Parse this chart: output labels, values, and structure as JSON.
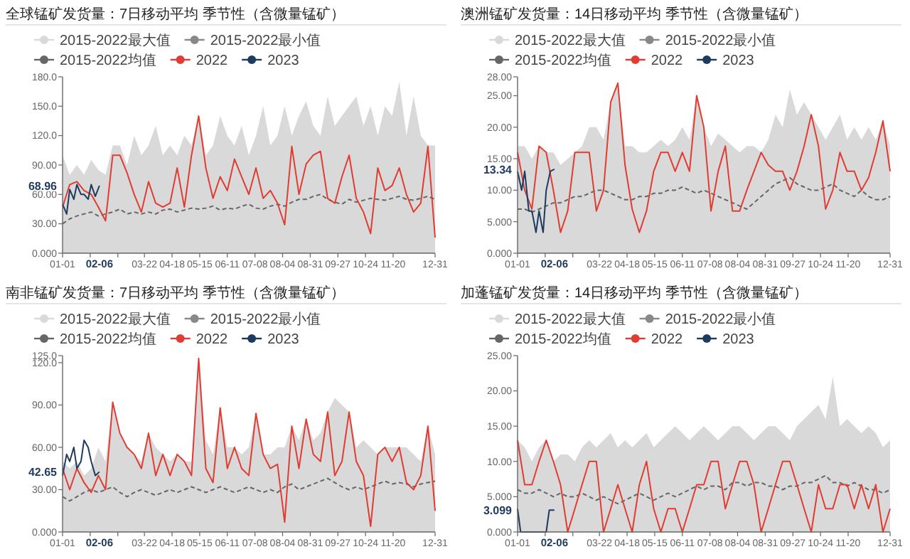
{
  "chart_data": [
    {
      "type": "line",
      "title": "全球锰矿发货量：7日移动平均 季节性（含微量锰矿）",
      "legend": "top",
      "x": [
        "--01-01",
        "--01-08",
        "--01-15",
        "--01-22",
        "--01-29",
        "--02-05",
        "--02-12",
        "--02-19",
        "--02-26",
        "--03-05",
        "--03-12",
        "--03-19",
        "--03-26",
        "--04-02",
        "--04-09",
        "--04-16",
        "--04-23",
        "--04-30",
        "--05-07",
        "--05-14",
        "--05-21",
        "--05-28",
        "--06-04",
        "--06-11",
        "--06-18",
        "--06-25",
        "--07-02",
        "--07-09",
        "--07-16",
        "--07-23",
        "--07-30",
        "--08-06",
        "--08-13",
        "--08-20",
        "--08-27",
        "--09-03",
        "--09-10",
        "--09-17",
        "--09-24",
        "--10-01",
        "--10-08",
        "--10-15",
        "--10-22",
        "--10-29",
        "--11-05",
        "--11-12",
        "--11-19",
        "--11-26",
        "--12-03",
        "--12-10",
        "--12-17",
        "--12-24",
        "--12-31"
      ],
      "xlim": [
        "--01-01",
        "--12-31"
      ],
      "xticks": [
        {
          "value": "--01-01",
          "label": "01-01"
        },
        {
          "value": "--01-28",
          "label": null
        },
        {
          "value": "--02-24",
          "label": null
        },
        {
          "value": "--03-22",
          "label": "03-22"
        },
        {
          "value": "--04-18",
          "label": "04-18"
        },
        {
          "value": "--05-15",
          "label": "05-15"
        },
        {
          "value": "--06-11",
          "label": "06-11"
        },
        {
          "value": "--07-08",
          "label": "07-08"
        },
        {
          "value": "--08-04",
          "label": "08-04"
        },
        {
          "value": "--08-31",
          "label": "08-31"
        },
        {
          "value": "--09-27",
          "label": "09-27"
        },
        {
          "value": "--10-24",
          "label": "10-24"
        },
        {
          "value": "--11-20",
          "label": "11-20"
        },
        {
          "value": "--12-31",
          "label": "12-31"
        }
      ],
      "ylim": [
        0,
        180
      ],
      "yticks": [
        {
          "value": 0,
          "label": "0.000"
        },
        {
          "value": 30,
          "label": "30.00"
        },
        {
          "value": 60,
          "label": "60.00"
        },
        {
          "value": 90,
          "label": "90.00"
        },
        {
          "value": 120,
          "label": "120.0"
        },
        {
          "value": 150,
          "label": "150.0"
        },
        {
          "value": 180,
          "label": "180.0"
        }
      ],
      "series": [
        {
          "name": "2015-2022最大值",
          "type": "area",
          "color": "#d9d9d9",
          "values": [
            100,
            80,
            90,
            80,
            95,
            85,
            80,
            110,
            110,
            90,
            120,
            100,
            110,
            130,
            100,
            110,
            100,
            120,
            110,
            140,
            100,
            110,
            140,
            120,
            110,
            130,
            100,
            120,
            150,
            110,
            120,
            150,
            120,
            140,
            155,
            130,
            120,
            160,
            130,
            140,
            150,
            160,
            130,
            150,
            120,
            150,
            140,
            175,
            120,
            160,
            120,
            110,
            110
          ]
        },
        {
          "name": "2015-2022最小值",
          "type": "line",
          "color": "#888888",
          "values": [
            null,
            null,
            null,
            null,
            null,
            null,
            null,
            null,
            null,
            null,
            null,
            null,
            null,
            null,
            null,
            null,
            null,
            null,
            null,
            null,
            null,
            null,
            null,
            null,
            null,
            null,
            null,
            null,
            null,
            null,
            null,
            null,
            null,
            null,
            null,
            null,
            null,
            null,
            null,
            null,
            null,
            null,
            null,
            null,
            null,
            null,
            null,
            null,
            null,
            null,
            null,
            null,
            null
          ]
        },
        {
          "name": "2015-2022均值",
          "type": "line",
          "line_style": "dashed",
          "color": "#666666",
          "values": [
            30,
            35,
            38,
            40,
            42,
            38,
            40,
            42,
            45,
            40,
            42,
            40,
            42,
            40,
            44,
            45,
            42,
            44,
            46,
            45,
            46,
            48,
            44,
            46,
            45,
            48,
            50,
            46,
            45,
            48,
            50,
            48,
            52,
            55,
            55,
            58,
            60,
            55,
            52,
            50,
            55,
            52,
            54,
            56,
            55,
            54,
            56,
            58,
            55,
            54,
            56,
            58,
            55
          ]
        },
        {
          "name": "2022",
          "type": "line",
          "color": "#e03c31",
          "values": [
            47,
            70,
            73,
            64,
            60,
            47,
            33,
            100,
            100,
            82,
            60,
            42,
            73,
            51,
            47,
            51,
            87,
            47,
            100,
            140,
            87,
            56,
            78,
            64,
            96,
            78,
            60,
            87,
            56,
            64,
            51,
            29,
            109,
            60,
            91,
            100,
            104,
            56,
            51,
            78,
            100,
            56,
            42,
            20,
            87,
            64,
            69,
            87,
            60,
            42,
            51,
            109,
            16
          ]
        },
        {
          "name": "2023",
          "type": "line",
          "color": "#1f3a5f",
          "x": [
            "--01-01",
            "--01-05",
            "--01-08",
            "--01-12",
            "--01-15",
            "--01-19",
            "--01-22",
            "--01-26",
            "--01-29",
            "--02-02",
            "--02-06"
          ],
          "values": [
            50,
            40,
            65,
            55,
            70,
            60,
            60,
            55,
            70,
            58,
            68.96
          ]
        }
      ],
      "annotations": [
        "02-06",
        "68.96"
      ]
    },
    {
      "type": "line",
      "title": "澳洲锰矿发货量：14日移动平均 季节性（含微量锰矿）",
      "legend": "top",
      "x": [
        "--01-01",
        "--01-08",
        "--01-15",
        "--01-22",
        "--01-29",
        "--02-05",
        "--02-12",
        "--02-19",
        "--02-26",
        "--03-05",
        "--03-12",
        "--03-19",
        "--03-26",
        "--04-02",
        "--04-09",
        "--04-16",
        "--04-23",
        "--04-30",
        "--05-07",
        "--05-14",
        "--05-21",
        "--05-28",
        "--06-04",
        "--06-11",
        "--06-18",
        "--06-25",
        "--07-02",
        "--07-09",
        "--07-16",
        "--07-23",
        "--07-30",
        "--08-06",
        "--08-13",
        "--08-20",
        "--08-27",
        "--09-03",
        "--09-10",
        "--09-17",
        "--09-24",
        "--10-01",
        "--10-08",
        "--10-15",
        "--10-22",
        "--10-29",
        "--11-05",
        "--11-12",
        "--11-19",
        "--11-26",
        "--12-03",
        "--12-10",
        "--12-17",
        "--12-24",
        "--12-31"
      ],
      "xlim": [
        "--01-01",
        "--12-31"
      ],
      "xticks": [
        {
          "value": "--01-01",
          "label": "01-01"
        },
        {
          "value": "--01-28",
          "label": null
        },
        {
          "value": "--02-24",
          "label": null
        },
        {
          "value": "--03-22",
          "label": "03-22"
        },
        {
          "value": "--04-18",
          "label": "04-18"
        },
        {
          "value": "--05-15",
          "label": "05-15"
        },
        {
          "value": "--06-11",
          "label": "06-11"
        },
        {
          "value": "--07-08",
          "label": "07-08"
        },
        {
          "value": "--08-04",
          "label": "08-04"
        },
        {
          "value": "--08-31",
          "label": "08-31"
        },
        {
          "value": "--09-27",
          "label": "09-27"
        },
        {
          "value": "--10-24",
          "label": "10-24"
        },
        {
          "value": "--11-20",
          "label": "11-20"
        },
        {
          "value": "--12-31",
          "label": "12-31"
        }
      ],
      "ylim": [
        0,
        28
      ],
      "yticks": [
        {
          "value": 0,
          "label": "0.000"
        },
        {
          "value": 5,
          "label": "5.000"
        },
        {
          "value": 10,
          "label": "10.00"
        },
        {
          "value": 15,
          "label": "15.00"
        },
        {
          "value": 20,
          "label": "20.00"
        },
        {
          "value": 25,
          "label": "25.00"
        },
        {
          "value": 28,
          "label": "28.00"
        }
      ],
      "series": [
        {
          "name": "2015-2022最大值",
          "type": "area",
          "color": "#d9d9d9",
          "values": [
            17,
            17,
            15,
            17,
            16,
            16,
            14,
            15,
            16,
            17,
            20,
            20,
            18,
            24,
            27,
            17,
            17,
            16,
            16,
            17,
            18,
            17,
            18,
            20,
            18,
            25,
            20,
            17,
            19,
            18,
            17,
            16,
            17,
            17,
            16,
            18,
            22,
            20,
            26,
            22,
            24,
            22,
            20,
            18,
            20,
            22,
            18,
            20,
            18,
            20,
            18,
            21,
            17
          ]
        },
        {
          "name": "2015-2022最小值",
          "type": "line",
          "color": "#888888",
          "values": [
            null,
            null,
            null,
            null,
            null,
            null,
            null,
            null,
            null,
            null,
            null,
            null,
            null,
            null,
            null,
            null,
            null,
            null,
            null,
            null,
            null,
            null,
            null,
            null,
            null,
            null,
            null,
            null,
            null,
            null,
            null,
            null,
            null,
            null,
            null,
            null,
            null,
            null,
            null,
            null,
            null,
            null,
            null,
            null,
            null,
            null,
            null,
            null,
            null,
            null,
            null,
            null,
            null
          ]
        },
        {
          "name": "2015-2022均值",
          "type": "line",
          "line_style": "dashed",
          "color": "#666666",
          "values": [
            7,
            7,
            6.5,
            7,
            7.5,
            8,
            8,
            8.5,
            9,
            9,
            9.5,
            10,
            10,
            9.5,
            9,
            8.5,
            8.5,
            9,
            9,
            9.5,
            9.5,
            10,
            10,
            10.5,
            10,
            9.5,
            10,
            9.5,
            9,
            8.5,
            8,
            7.5,
            7,
            8,
            9,
            10,
            11,
            11.5,
            12,
            11,
            10.5,
            10,
            10,
            10.5,
            11,
            10,
            9.5,
            9,
            10,
            9,
            8.5,
            8.5,
            9
          ]
        },
        {
          "name": "2022",
          "type": "line",
          "color": "#e03c31",
          "values": [
            16,
            10,
            7,
            17,
            16,
            10,
            3.3,
            6.7,
            16,
            16,
            16,
            6.7,
            10,
            24,
            27,
            14,
            7,
            3.3,
            6.7,
            13,
            16,
            16,
            13,
            16,
            13,
            25,
            20,
            6.7,
            13,
            17,
            6.7,
            6.7,
            10,
            13,
            16,
            14,
            13,
            13,
            10,
            13,
            17,
            22,
            17,
            7,
            10,
            16,
            13,
            13,
            10,
            12,
            16,
            21,
            13
          ]
        },
        {
          "name": "2023",
          "type": "line",
          "color": "#1f3a5f",
          "x": [
            "--01-01",
            "--01-05",
            "--01-08",
            "--01-12",
            "--01-15",
            "--01-19",
            "--01-22",
            "--01-26",
            "--01-29",
            "--02-02",
            "--02-06"
          ],
          "values": [
            13,
            10,
            13,
            6.7,
            6.7,
            3.3,
            6.7,
            3.3,
            10,
            13,
            13.34
          ]
        }
      ],
      "annotations": [
        "02-06",
        "13.34"
      ]
    },
    {
      "type": "line",
      "title": "南非锰矿发货量：7日移动平均 季节性（含微量锰矿）",
      "legend": "top",
      "x": [
        "--01-01",
        "--01-08",
        "--01-15",
        "--01-22",
        "--01-29",
        "--02-05",
        "--02-12",
        "--02-19",
        "--02-26",
        "--03-05",
        "--03-12",
        "--03-19",
        "--03-26",
        "--04-02",
        "--04-09",
        "--04-16",
        "--04-23",
        "--04-30",
        "--05-07",
        "--05-14",
        "--05-21",
        "--05-28",
        "--06-04",
        "--06-11",
        "--06-18",
        "--06-25",
        "--07-02",
        "--07-09",
        "--07-16",
        "--07-23",
        "--07-30",
        "--08-06",
        "--08-13",
        "--08-20",
        "--08-27",
        "--09-03",
        "--09-10",
        "--09-17",
        "--09-24",
        "--10-01",
        "--10-08",
        "--10-15",
        "--10-22",
        "--10-29",
        "--11-05",
        "--11-12",
        "--11-19",
        "--11-26",
        "--12-03",
        "--12-10",
        "--12-17",
        "--12-24",
        "--12-31"
      ],
      "xlim": [
        "--01-01",
        "--12-31"
      ],
      "xticks": [
        {
          "value": "--01-01",
          "label": "01-01"
        },
        {
          "value": "--01-28",
          "label": null
        },
        {
          "value": "--02-24",
          "label": null
        },
        {
          "value": "--03-22",
          "label": "03-22"
        },
        {
          "value": "--04-18",
          "label": "04-18"
        },
        {
          "value": "--05-15",
          "label": "05-15"
        },
        {
          "value": "--06-11",
          "label": "06-11"
        },
        {
          "value": "--07-08",
          "label": "07-08"
        },
        {
          "value": "--08-04",
          "label": "08-04"
        },
        {
          "value": "--08-31",
          "label": "08-31"
        },
        {
          "value": "--09-27",
          "label": "09-27"
        },
        {
          "value": "--10-24",
          "label": "10-24"
        },
        {
          "value": "--11-20",
          "label": "11-20"
        },
        {
          "value": "--12-31",
          "label": "12-31"
        }
      ],
      "ylim": [
        0,
        125
      ],
      "yticks": [
        {
          "value": 0,
          "label": "0.000"
        },
        {
          "value": 30,
          "label": "30.00"
        },
        {
          "value": 60,
          "label": "60.00"
        },
        {
          "value": 90,
          "label": "90.00"
        },
        {
          "value": 120,
          "label": "120.0"
        },
        {
          "value": 125,
          "label": "125.0"
        }
      ],
      "series": [
        {
          "name": "2015-2022最大值",
          "type": "area",
          "color": "#d9d9d9",
          "values": [
            50,
            45,
            50,
            40,
            45,
            60,
            50,
            92,
            70,
            60,
            55,
            50,
            70,
            60,
            55,
            50,
            55,
            50,
            50,
            123,
            65,
            55,
            88,
            60,
            60,
            55,
            60,
            84,
            55,
            55,
            60,
            60,
            75,
            65,
            80,
            65,
            70,
            85,
            95,
            90,
            85,
            60,
            65,
            60,
            55,
            60,
            60,
            60,
            60,
            55,
            50,
            75,
            55
          ]
        },
        {
          "name": "2015-2022最小值",
          "type": "line",
          "color": "#888888",
          "values": [
            null,
            null,
            null,
            null,
            null,
            null,
            null,
            null,
            null,
            null,
            null,
            null,
            null,
            null,
            null,
            null,
            null,
            null,
            null,
            null,
            null,
            null,
            null,
            null,
            null,
            null,
            null,
            null,
            null,
            null,
            null,
            null,
            null,
            null,
            null,
            null,
            null,
            null,
            null,
            null,
            null,
            null,
            null,
            null,
            null,
            null,
            null,
            null,
            null,
            null,
            null,
            null,
            null
          ]
        },
        {
          "name": "2015-2022均值",
          "type": "line",
          "line_style": "dashed",
          "color": "#666666",
          "values": [
            25,
            22,
            25,
            28,
            30,
            28,
            30,
            32,
            28,
            25,
            28,
            30,
            28,
            26,
            28,
            30,
            28,
            30,
            32,
            30,
            28,
            30,
            32,
            30,
            28,
            30,
            32,
            30,
            28,
            30,
            28,
            32,
            34,
            30,
            32,
            34,
            36,
            38,
            35,
            32,
            30,
            32,
            30,
            32,
            34,
            36,
            34,
            35,
            34,
            32,
            34,
            35,
            36
          ]
        },
        {
          "name": "2022",
          "type": "line",
          "color": "#e03c31",
          "values": [
            45,
            30,
            45,
            35,
            28,
            40,
            30,
            92,
            70,
            60,
            55,
            45,
            70,
            40,
            55,
            40,
            55,
            50,
            40,
            123,
            45,
            35,
            88,
            45,
            60,
            45,
            40,
            84,
            55,
            45,
            48,
            7,
            75,
            45,
            80,
            55,
            50,
            85,
            40,
            50,
            85,
            50,
            40,
            4,
            55,
            60,
            50,
            60,
            35,
            30,
            40,
            75,
            15
          ]
        },
        {
          "name": "2023",
          "type": "line",
          "color": "#1f3a5f",
          "x": [
            "--01-01",
            "--01-05",
            "--01-08",
            "--01-12",
            "--01-15",
            "--01-19",
            "--01-22",
            "--01-26",
            "--01-29",
            "--02-02",
            "--02-06"
          ],
          "values": [
            40,
            55,
            50,
            60,
            45,
            50,
            65,
            60,
            50,
            40,
            42.65
          ]
        }
      ],
      "annotations": [
        "02-06",
        "42.65"
      ]
    },
    {
      "type": "line",
      "title": "加蓬锰矿发货量：14日移动平均 季节性（含微量锰矿）",
      "legend": "top",
      "x": [
        "--01-01",
        "--01-08",
        "--01-15",
        "--01-22",
        "--01-29",
        "--02-05",
        "--02-12",
        "--02-19",
        "--02-26",
        "--03-05",
        "--03-12",
        "--03-19",
        "--03-26",
        "--04-02",
        "--04-09",
        "--04-16",
        "--04-23",
        "--04-30",
        "--05-07",
        "--05-14",
        "--05-21",
        "--05-28",
        "--06-04",
        "--06-11",
        "--06-18",
        "--06-25",
        "--07-02",
        "--07-09",
        "--07-16",
        "--07-23",
        "--07-30",
        "--08-06",
        "--08-13",
        "--08-20",
        "--08-27",
        "--09-03",
        "--09-10",
        "--09-17",
        "--09-24",
        "--10-01",
        "--10-08",
        "--10-15",
        "--10-22",
        "--10-29",
        "--11-05",
        "--11-12",
        "--11-19",
        "--11-26",
        "--12-03",
        "--12-10",
        "--12-17",
        "--12-24",
        "--12-31"
      ],
      "xlim": [
        "--01-01",
        "--12-31"
      ],
      "xticks": [
        {
          "value": "--01-01",
          "label": "01-01"
        },
        {
          "value": "--01-28",
          "label": null
        },
        {
          "value": "--02-24",
          "label": null
        },
        {
          "value": "--03-22",
          "label": "03-22"
        },
        {
          "value": "--04-18",
          "label": "04-18"
        },
        {
          "value": "--05-15",
          "label": "05-15"
        },
        {
          "value": "--06-11",
          "label": "06-11"
        },
        {
          "value": "--07-08",
          "label": "07-08"
        },
        {
          "value": "--08-04",
          "label": "08-04"
        },
        {
          "value": "--08-31",
          "label": "08-31"
        },
        {
          "value": "--09-27",
          "label": "09-27"
        },
        {
          "value": "--10-24",
          "label": "10-24"
        },
        {
          "value": "--11-20",
          "label": "11-20"
        },
        {
          "value": "--12-31",
          "label": "12-31"
        }
      ],
      "ylim": [
        0,
        25
      ],
      "yticks": [
        {
          "value": 0,
          "label": "0.000"
        },
        {
          "value": 5,
          "label": "5.000"
        },
        {
          "value": 10,
          "label": "10.00"
        },
        {
          "value": 15,
          "label": "15.00"
        },
        {
          "value": 20,
          "label": "20.00"
        },
        {
          "value": 25,
          "label": "25.00"
        }
      ],
      "series": [
        {
          "name": "2015-2022最大值",
          "type": "area",
          "color": "#d9d9d9",
          "values": [
            13,
            12,
            10,
            12,
            13,
            10,
            11,
            11,
            10,
            12,
            13,
            12,
            13,
            14,
            12,
            13,
            12,
            13,
            14,
            12,
            13,
            14,
            15,
            14,
            13,
            14,
            15,
            14,
            13,
            14,
            15,
            15,
            14,
            13,
            14,
            15,
            15,
            14,
            13,
            15,
            16,
            17,
            18,
            16,
            22,
            15,
            16,
            15,
            14,
            15,
            14,
            12,
            13
          ]
        },
        {
          "name": "2015-2022最小值",
          "type": "line",
          "color": "#888888",
          "values": [
            null,
            null,
            null,
            null,
            null,
            null,
            null,
            null,
            null,
            null,
            null,
            null,
            null,
            null,
            null,
            null,
            null,
            null,
            null,
            null,
            null,
            null,
            null,
            null,
            null,
            null,
            null,
            null,
            null,
            null,
            null,
            null,
            null,
            null,
            null,
            null,
            null,
            null,
            null,
            null,
            null,
            null,
            null,
            null,
            null,
            null,
            null,
            null,
            null,
            null,
            null,
            null,
            null
          ]
        },
        {
          "name": "2015-2022均值",
          "type": "line",
          "line_style": "dashed",
          "color": "#666666",
          "values": [
            6,
            5.5,
            5.5,
            6,
            5.5,
            5,
            5.5,
            5,
            5,
            5.5,
            5,
            4.5,
            5,
            4.5,
            4,
            4.5,
            5,
            5.5,
            5,
            4.5,
            5,
            5.5,
            5,
            5.5,
            6,
            6.5,
            6,
            6.5,
            6.5,
            6,
            7,
            7,
            6.5,
            7,
            7,
            6.5,
            6.5,
            6,
            6.5,
            6.5,
            7,
            7,
            7.5,
            8,
            7,
            7,
            6.5,
            7,
            6.5,
            6,
            6,
            5.5,
            6
          ]
        },
        {
          "name": "2022",
          "type": "line",
          "color": "#e03c31",
          "values": [
            13,
            6.7,
            6.7,
            10,
            13,
            10,
            6.7,
            0,
            3.3,
            6.7,
            10,
            10,
            0,
            3.3,
            6.7,
            3.3,
            0,
            6.7,
            10,
            3.3,
            0,
            3.3,
            3.3,
            0,
            3.3,
            6.7,
            6.7,
            10,
            10,
            3.3,
            6.7,
            10,
            10,
            6.7,
            0,
            3.3,
            6.7,
            10,
            10,
            6.7,
            3.3,
            0,
            6.7,
            3.3,
            3.3,
            6.7,
            6.7,
            3.3,
            6.7,
            3.3,
            6.7,
            0,
            3.3
          ]
        },
        {
          "name": "2023",
          "type": "line",
          "color": "#1f3a5f",
          "x": [
            "--01-01",
            "--01-04",
            "--01-29",
            "--02-01",
            "--02-06"
          ],
          "values": [
            3.3,
            0,
            0,
            3.099,
            3.099
          ]
        }
      ],
      "annotations": [
        "02-06",
        "3.099"
      ]
    }
  ]
}
